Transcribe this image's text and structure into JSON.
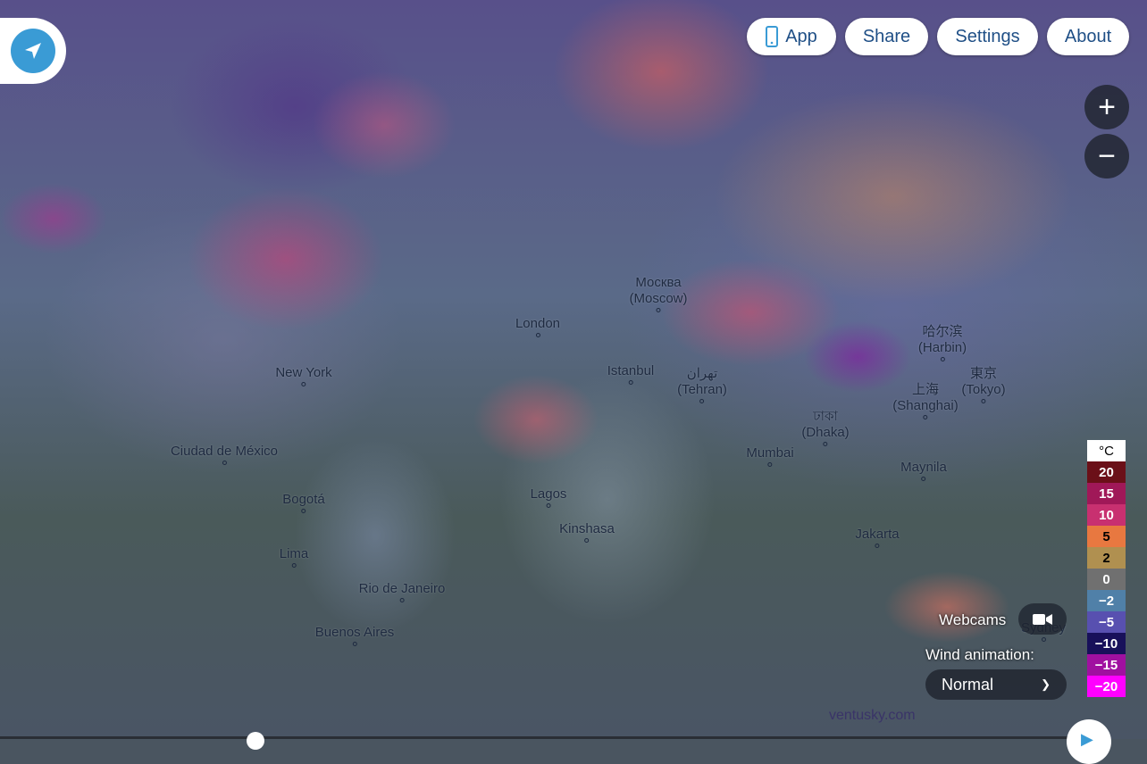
{
  "header": {
    "buttons": [
      {
        "label": "App",
        "icon": "phone-icon"
      },
      {
        "label": "Share"
      },
      {
        "label": "Settings"
      },
      {
        "label": "About"
      }
    ]
  },
  "location_button": {
    "icon": "location-arrow-icon",
    "color": "#3a9bd5"
  },
  "zoom": {
    "in": "+",
    "out": "−"
  },
  "cities": [
    {
      "name": "Москва",
      "sub": "(Moscow)"
    },
    {
      "name": "London"
    },
    {
      "name": "New York"
    },
    {
      "name": "Istanbul"
    },
    {
      "name": "تهران",
      "sub": "(Tehran)"
    },
    {
      "name": "哈尔滨",
      "sub": "(Harbin)"
    },
    {
      "name": "上海",
      "sub": "(Shanghai)"
    },
    {
      "name": "東京",
      "sub": "(Tokyo)"
    },
    {
      "name": "ঢাকা",
      "sub": "(Dhaka)"
    },
    {
      "name": "Mumbai"
    },
    {
      "name": "Ciudad de México"
    },
    {
      "name": "Bogotá"
    },
    {
      "name": "Lima"
    },
    {
      "name": "Rio de Janeiro"
    },
    {
      "name": "Buenos Aires"
    },
    {
      "name": "Lagos"
    },
    {
      "name": "Kinshasa"
    },
    {
      "name": "Maynila"
    },
    {
      "name": "Jakarta"
    },
    {
      "name": "Sydney"
    }
  ],
  "legend": {
    "unit": "°C",
    "steps": [
      {
        "label": "20",
        "color": "#6b1018",
        "text": "#fff"
      },
      {
        "label": "15",
        "color": "#a01858",
        "text": "#fff"
      },
      {
        "label": "10",
        "color": "#c83070",
        "text": "#fff"
      },
      {
        "label": "5",
        "color": "#e87840",
        "text": "#000"
      },
      {
        "label": "2",
        "color": "#b09050",
        "text": "#000"
      },
      {
        "label": "0",
        "color": "#707070",
        "text": "#fff"
      },
      {
        "label": "−2",
        "color": "#5080a8",
        "text": "#fff"
      },
      {
        "label": "−5",
        "color": "#5850b0",
        "text": "#fff"
      },
      {
        "label": "−10",
        "color": "#18105a",
        "text": "#fff"
      },
      {
        "label": "−15",
        "color": "#a010a0",
        "text": "#fff"
      },
      {
        "label": "−20",
        "color": "#ff00ff",
        "text": "#fff"
      }
    ]
  },
  "webcams": {
    "label": "Webcams",
    "icon": "video-camera-icon"
  },
  "wind_animation": {
    "label": "Wind animation:",
    "value": "Normal"
  },
  "brand": "ventusky.com"
}
